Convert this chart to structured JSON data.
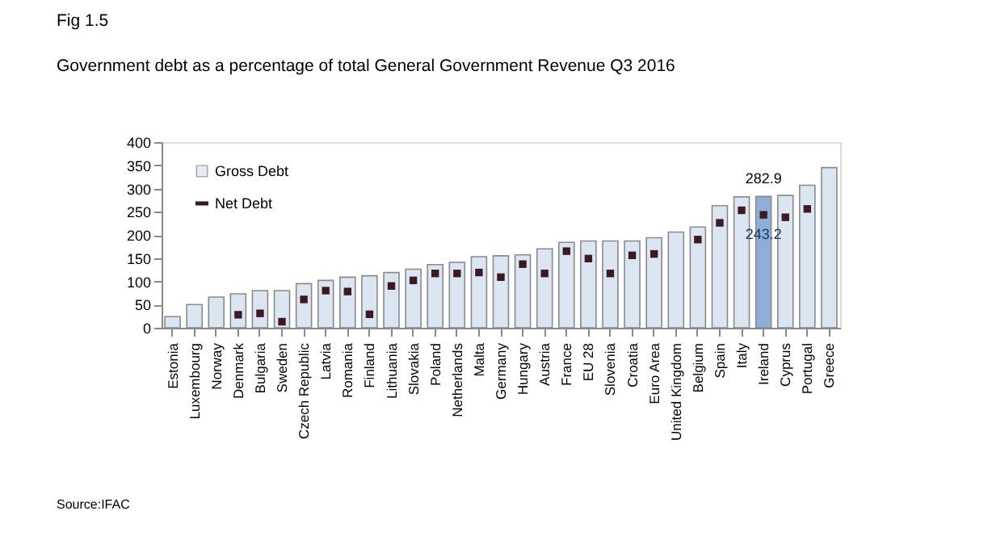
{
  "chart_data": {
    "type": "bar",
    "title": "Government debt as a percentage of total General Government Revenue Q3 2016",
    "annotations": [
      "Fig 1.5",
      "Source:IFAC"
    ],
    "categories": [
      "Estonia",
      "Luxembourg",
      "Norway",
      "Denmark",
      "Bulgaria",
      "Sweden",
      "Czech Republic",
      "Latvia",
      "Romania",
      "Finland",
      "Lithuania",
      "Slovakia",
      "Poland",
      "Netherlands",
      "Malta",
      "Germany",
      "Hungary",
      "Austria",
      "France",
      "EU 28",
      "Slovenia",
      "Croatia",
      "Euro Area",
      "United Kingdom",
      "Belgium",
      "Spain",
      "Italy",
      "Ireland",
      "Cyprus",
      "Portugal",
      "Greece"
    ],
    "series": [
      {
        "name": "Gross Debt",
        "color": "#dce6f2",
        "colors": [
          "#dce6f2",
          "#dce6f2",
          "#dce6f2",
          "#dce6f2",
          "#dce6f2",
          "#dce6f2",
          "#dce6f2",
          "#dce6f2",
          "#dce6f2",
          "#dce6f2",
          "#dce6f2",
          "#dce6f2",
          "#dce6f2",
          "#dce6f2",
          "#dce6f2",
          "#dce6f2",
          "#dce6f2",
          "#dce6f2",
          "#dce6f2",
          "#dce6f2",
          "#dce6f2",
          "#dce6f2",
          "#dce6f2",
          "#dce6f2",
          "#dce6f2",
          "#dce6f2",
          "#dce6f2",
          "#8eaed6",
          "#dce6f2",
          "#dce6f2",
          "#dce6f2"
        ],
        "values": [
          24,
          50,
          66,
          73,
          80,
          80,
          95,
          102,
          109,
          112,
          119,
          126,
          136,
          141,
          153,
          155,
          157,
          170,
          184,
          187,
          187,
          187,
          194,
          206,
          217,
          263,
          282,
          282.9,
          285,
          307,
          345
        ],
        "value_labels": [
          null,
          null,
          null,
          null,
          null,
          null,
          null,
          null,
          null,
          null,
          null,
          null,
          null,
          null,
          null,
          null,
          null,
          null,
          null,
          null,
          null,
          null,
          null,
          null,
          null,
          null,
          null,
          "282.9",
          null,
          null,
          null
        ]
      },
      {
        "name": "Net Debt",
        "type": "scatter",
        "color": "#3b1a22",
        "values": [
          null,
          null,
          null,
          28,
          31,
          13,
          61,
          80,
          78,
          29,
          90,
          102,
          117,
          117,
          119,
          109,
          137,
          117,
          165,
          149,
          117,
          156,
          159,
          null,
          190,
          226,
          253,
          243.2,
          238,
          256,
          null
        ],
        "value_labels": [
          null,
          null,
          null,
          null,
          null,
          null,
          null,
          null,
          null,
          null,
          null,
          null,
          null,
          null,
          null,
          null,
          null,
          null,
          null,
          null,
          null,
          null,
          null,
          null,
          null,
          null,
          null,
          "243.2",
          null,
          null,
          null
        ]
      }
    ],
    "ylim": [
      0,
      400
    ],
    "yticks": [
      0,
      50,
      100,
      150,
      200,
      250,
      300,
      350,
      400
    ],
    "grid": false,
    "legend": "top left"
  }
}
